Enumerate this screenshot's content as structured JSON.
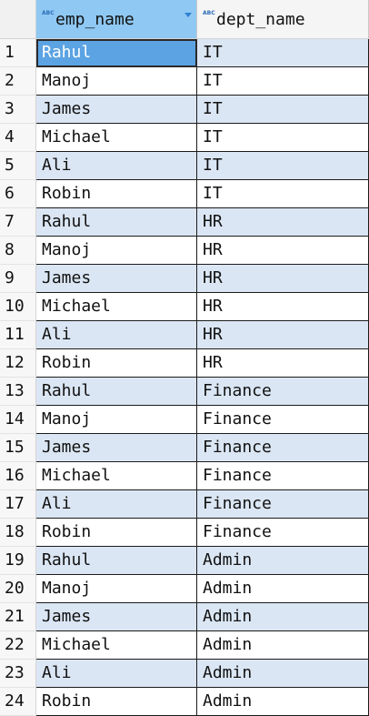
{
  "columns": [
    {
      "label": "emp_name",
      "type_icon": "ABC"
    },
    {
      "label": "dept_name",
      "type_icon": "ABC"
    }
  ],
  "rows": [
    {
      "n": "1",
      "emp_name": "Rahul",
      "dept_name": "IT"
    },
    {
      "n": "2",
      "emp_name": "Manoj",
      "dept_name": "IT"
    },
    {
      "n": "3",
      "emp_name": "James",
      "dept_name": "IT"
    },
    {
      "n": "4",
      "emp_name": "Michael",
      "dept_name": "IT"
    },
    {
      "n": "5",
      "emp_name": "Ali",
      "dept_name": "IT"
    },
    {
      "n": "6",
      "emp_name": "Robin",
      "dept_name": "IT"
    },
    {
      "n": "7",
      "emp_name": "Rahul",
      "dept_name": "HR"
    },
    {
      "n": "8",
      "emp_name": "Manoj",
      "dept_name": "HR"
    },
    {
      "n": "9",
      "emp_name": "James",
      "dept_name": "HR"
    },
    {
      "n": "10",
      "emp_name": "Michael",
      "dept_name": "HR"
    },
    {
      "n": "11",
      "emp_name": "Ali",
      "dept_name": "HR"
    },
    {
      "n": "12",
      "emp_name": "Robin",
      "dept_name": "HR"
    },
    {
      "n": "13",
      "emp_name": "Rahul",
      "dept_name": "Finance"
    },
    {
      "n": "14",
      "emp_name": "Manoj",
      "dept_name": "Finance"
    },
    {
      "n": "15",
      "emp_name": "James",
      "dept_name": "Finance"
    },
    {
      "n": "16",
      "emp_name": "Michael",
      "dept_name": "Finance"
    },
    {
      "n": "17",
      "emp_name": "Ali",
      "dept_name": "Finance"
    },
    {
      "n": "18",
      "emp_name": "Robin",
      "dept_name": "Finance"
    },
    {
      "n": "19",
      "emp_name": "Rahul",
      "dept_name": "Admin"
    },
    {
      "n": "20",
      "emp_name": "Manoj",
      "dept_name": "Admin"
    },
    {
      "n": "21",
      "emp_name": "James",
      "dept_name": "Admin"
    },
    {
      "n": "22",
      "emp_name": "Michael",
      "dept_name": "Admin"
    },
    {
      "n": "23",
      "emp_name": "Ali",
      "dept_name": "Admin"
    },
    {
      "n": "24",
      "emp_name": "Robin",
      "dept_name": "Admin"
    }
  ],
  "selected": {
    "row": 1,
    "column": "emp_name"
  },
  "colors": {
    "header_active": "#8ec8f3",
    "row_stripe": "#dbe6f4",
    "selection": "#5ba3e3"
  }
}
